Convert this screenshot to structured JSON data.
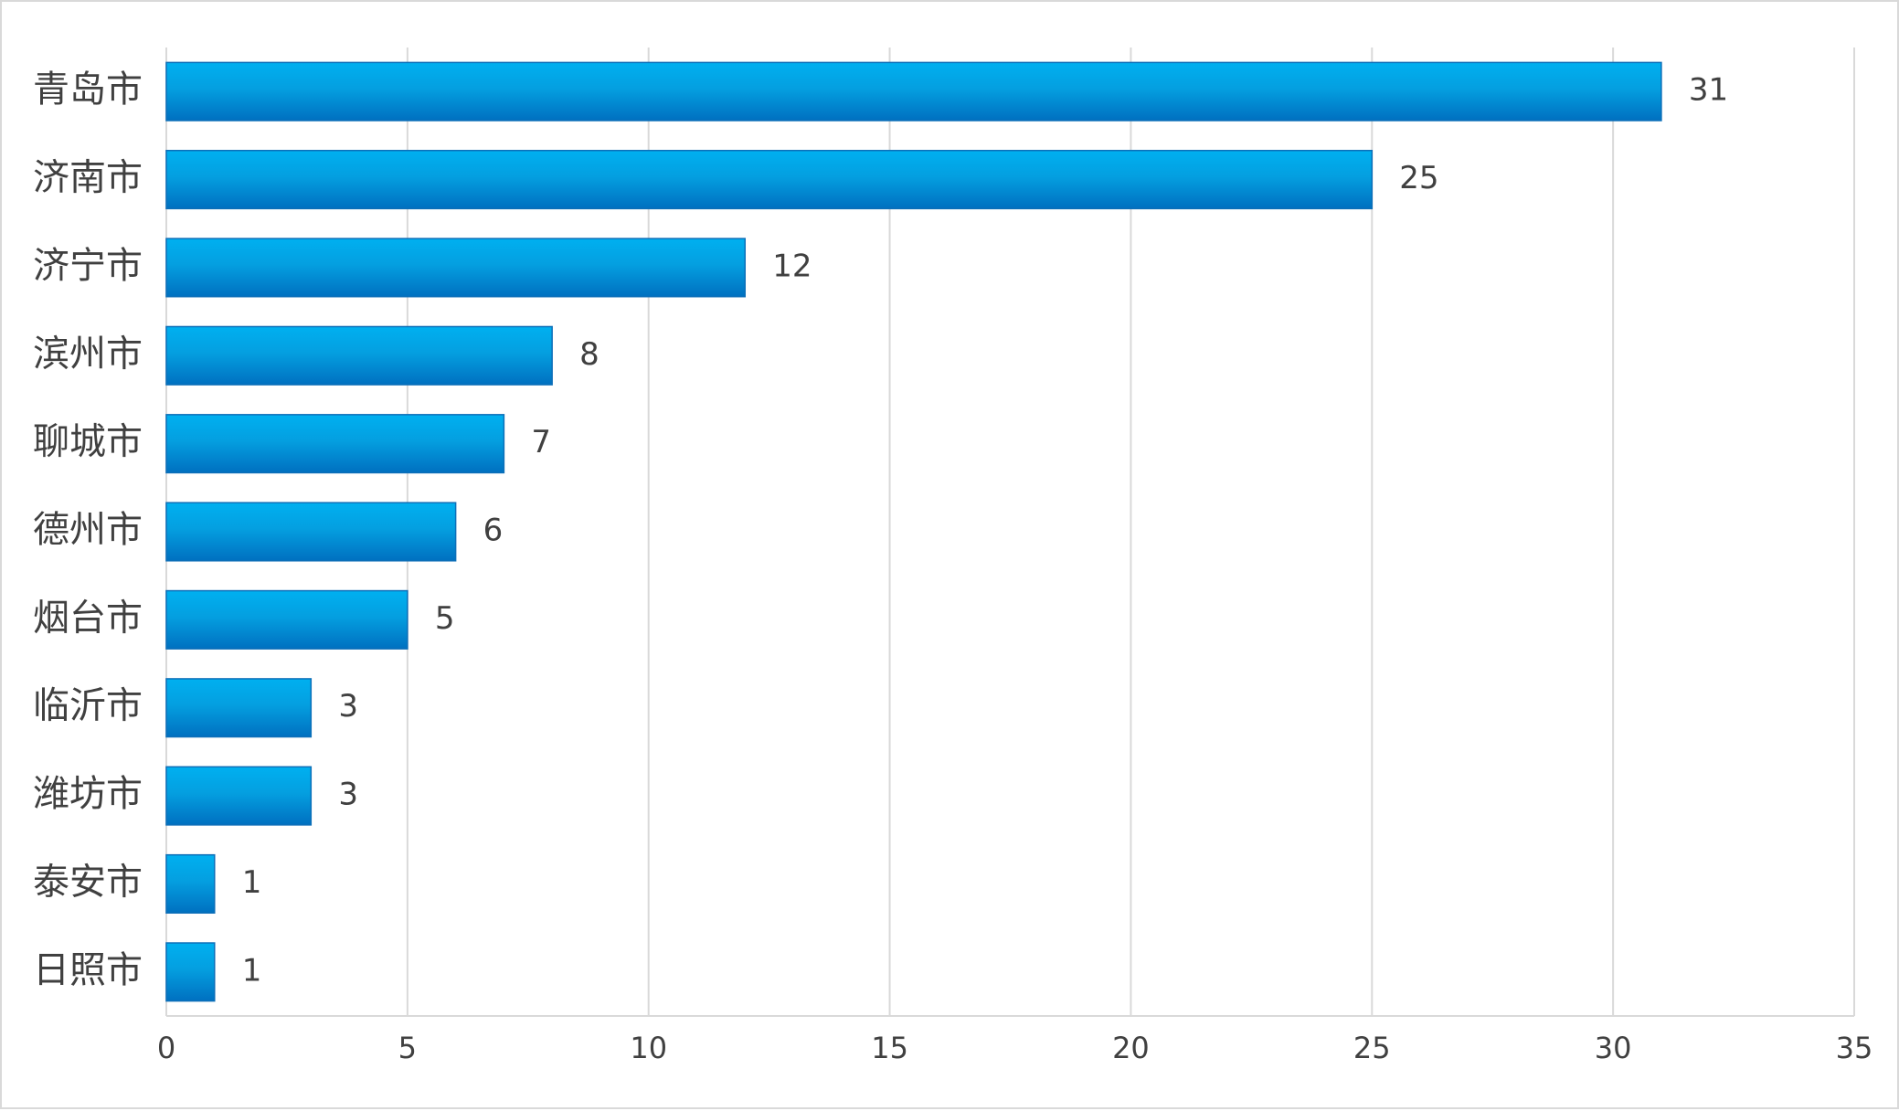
{
  "chart_data": {
    "type": "bar",
    "orientation": "horizontal",
    "title": "",
    "xlabel": "",
    "ylabel": "",
    "categories": [
      "青岛市",
      "济南市",
      "济宁市",
      "滨州市",
      "聊城市",
      "德州市",
      "烟台市",
      "临沂市",
      "潍坊市",
      "泰安市",
      "日照市"
    ],
    "values": [
      31,
      25,
      12,
      8,
      7,
      6,
      5,
      3,
      3,
      1,
      1
    ],
    "value_labels": [
      "31",
      "25",
      "12",
      "8",
      "7",
      "6",
      "5",
      "3",
      "3",
      "1",
      "1"
    ],
    "xlim": [
      0,
      35
    ],
    "x_ticks": [
      0,
      5,
      10,
      15,
      20,
      25,
      30,
      35
    ],
    "x_tick_labels": [
      "0",
      "5",
      "10",
      "15",
      "20",
      "25",
      "30",
      "35"
    ],
    "grid": "vertical",
    "legend": "none",
    "colors": {
      "bar_top": "#00b0f0",
      "bar_bottom": "#0070c0",
      "bar_border": "#0d6fb8",
      "grid": "#d9d9d9",
      "text": "#404040"
    }
  }
}
